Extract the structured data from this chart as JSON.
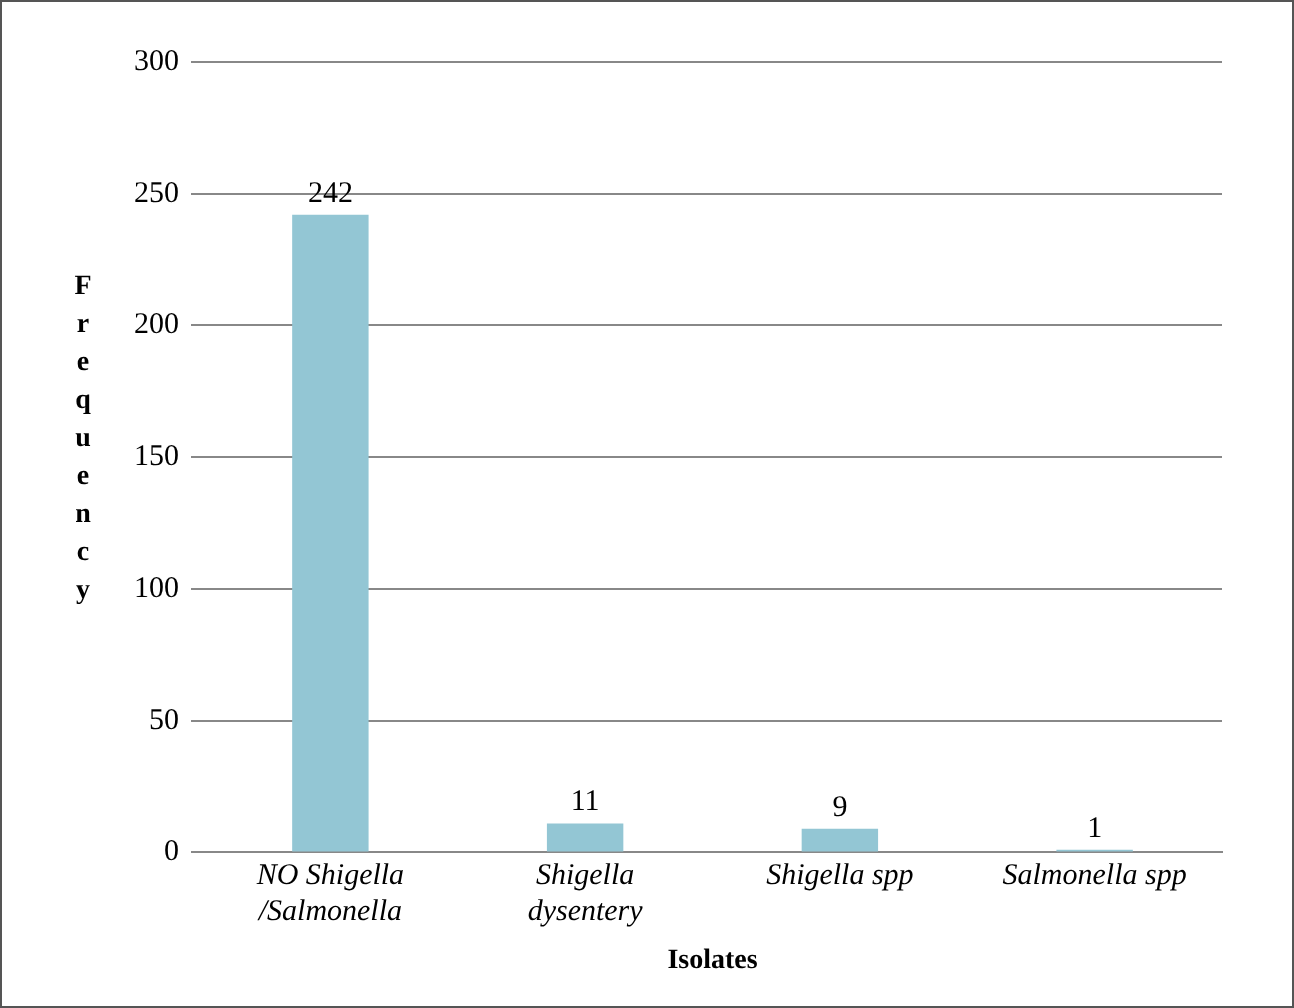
{
  "chart_data": {
    "type": "bar",
    "xlabel": "Isolates",
    "ylabel": "Frequency",
    "categories": [
      "NO Shigella /Salmonella",
      "Shigella dysentery",
      "Shigella spp",
      "Salmonella spp"
    ],
    "values": [
      242,
      11,
      9,
      1
    ],
    "color": "#93c6d4",
    "ylim": [
      0,
      300
    ],
    "yticks": [
      0,
      50,
      100,
      150,
      200,
      250,
      300
    ],
    "grid": "y",
    "data_labels": true
  }
}
